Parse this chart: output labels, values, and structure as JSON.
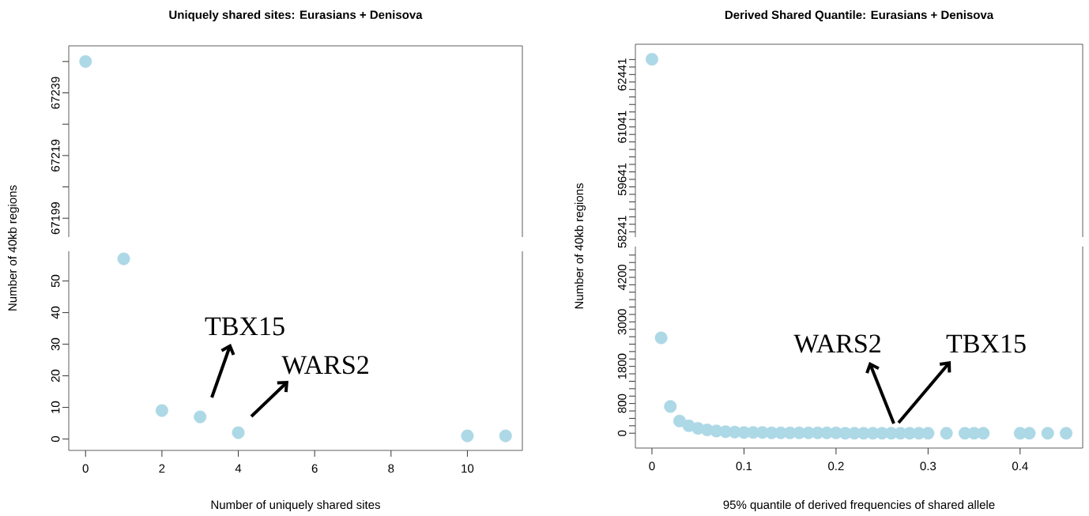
{
  "chart_data": [
    {
      "type": "scatter",
      "title": "Uniquely shared sites: Eurasians + Denisova",
      "ylabel": "Number of 40kb regions",
      "x": [
        0
      ],
      "values": [
        67249
      ],
      "color": "#add8e6",
      "xlim": [
        -0.44,
        11.44
      ],
      "ylim": [
        67193,
        67254
      ],
      "yticks": [
        67199,
        {
          "value": 67209,
          "label": null
        },
        67219,
        {
          "value": 67229,
          "label": null
        },
        67239,
        {
          "value": 67249,
          "label": null
        }
      ],
      "tick_labels": "y"
    },
    {
      "type": "scatter",
      "xlabel": "Number of uniquely shared sites",
      "x": [
        1,
        2,
        3,
        4,
        10,
        11
      ],
      "values": [
        57,
        9,
        7,
        2,
        1,
        1
      ],
      "color": "#add8e6",
      "xlim": [
        -0.44,
        11.44
      ],
      "ylim": [
        -3.6,
        59.4
      ],
      "xticks": [
        0,
        2,
        4,
        6,
        8,
        10
      ],
      "yticks": [
        0,
        10,
        20,
        30,
        40,
        50
      ],
      "annotations": [
        "TBX15",
        "WARS2"
      ]
    },
    {
      "type": "scatter",
      "title": "Derived Shared Quantile: Eurasians + Denisova",
      "ylabel": "Number of 40kb regions",
      "x": [
        0
      ],
      "values": [
        62850
      ],
      "color": "#add8e6",
      "xlim": [
        -0.018,
        0.468
      ],
      "ylim": [
        58100,
        63250
      ],
      "yticks": [
        58241,
        {
          "value": 58441,
          "label": null
        },
        {
          "value": 58641,
          "label": null
        },
        {
          "value": 58841,
          "label": null
        },
        {
          "value": 59041,
          "label": null
        },
        {
          "value": 59241,
          "label": null
        },
        {
          "value": 59441,
          "label": null
        },
        59641,
        {
          "value": 59841,
          "label": null
        },
        {
          "value": 60041,
          "label": null
        },
        {
          "value": 60241,
          "label": null
        },
        {
          "value": 60441,
          "label": null
        },
        {
          "value": 60641,
          "label": null
        },
        {
          "value": 60841,
          "label": null
        },
        61041,
        {
          "value": 61241,
          "label": null
        },
        {
          "value": 61441,
          "label": null
        },
        {
          "value": 61641,
          "label": null
        },
        {
          "value": 61841,
          "label": null
        },
        {
          "value": 62041,
          "label": null
        },
        {
          "value": 62241,
          "label": null
        },
        62441,
        {
          "value": 62641,
          "label": null
        },
        {
          "value": 62841,
          "label": null
        }
      ],
      "tick_labels": "y"
    },
    {
      "type": "scatter",
      "xlabel": "95% quantile of derived frequencies of shared allele",
      "x": [
        0.01,
        0.02,
        0.03,
        0.04,
        0.05,
        0.06,
        0.07,
        0.08,
        0.09,
        0.1,
        0.11,
        0.12,
        0.13,
        0.14,
        0.15,
        0.16,
        0.17,
        0.18,
        0.19,
        0.2,
        0.21,
        0.22,
        0.23,
        0.24,
        0.25,
        0.26,
        0.27,
        0.28,
        0.29,
        0.3,
        0.32,
        0.34,
        0.35,
        0.36,
        0.4,
        0.41,
        0.43,
        0.45
      ],
      "values": [
        2570,
        720,
        330,
        200,
        130,
        90,
        60,
        40,
        30,
        20,
        20,
        20,
        10,
        10,
        10,
        10,
        10,
        10,
        10,
        10,
        0,
        0,
        0,
        0,
        0,
        0,
        0,
        0,
        0,
        0,
        0,
        0,
        0,
        0,
        0,
        0,
        0,
        0
      ],
      "color": "#add8e6",
      "xlim": [
        -0.018,
        0.468
      ],
      "ylim": [
        -400,
        5030
      ],
      "xticks": [
        0,
        0.1,
        0.2,
        0.3,
        0.4
      ],
      "yticks": [
        0,
        {
          "value": 200,
          "label": null
        },
        {
          "value": 400,
          "label": null
        },
        {
          "value": 600,
          "label": null
        },
        800,
        {
          "value": 1000,
          "label": null
        },
        {
          "value": 1200,
          "label": null
        },
        {
          "value": 1400,
          "label": null
        },
        {
          "value": 1600,
          "label": null
        },
        1800,
        {
          "value": 2000,
          "label": null
        },
        {
          "value": 2200,
          "label": null
        },
        {
          "value": 2400,
          "label": null
        },
        {
          "value": 2600,
          "label": null
        },
        {
          "value": 2800,
          "label": null
        },
        3000,
        {
          "value": 3200,
          "label": null
        },
        {
          "value": 3400,
          "label": null
        },
        {
          "value": 3600,
          "label": null
        },
        {
          "value": 3800,
          "label": null
        },
        {
          "value": 4000,
          "label": null
        },
        4200,
        {
          "value": 4400,
          "label": null
        },
        {
          "value": 4600,
          "label": null
        },
        {
          "value": 4800,
          "label": null
        }
      ],
      "annotations": [
        "WARS2",
        "TBX15"
      ]
    }
  ]
}
